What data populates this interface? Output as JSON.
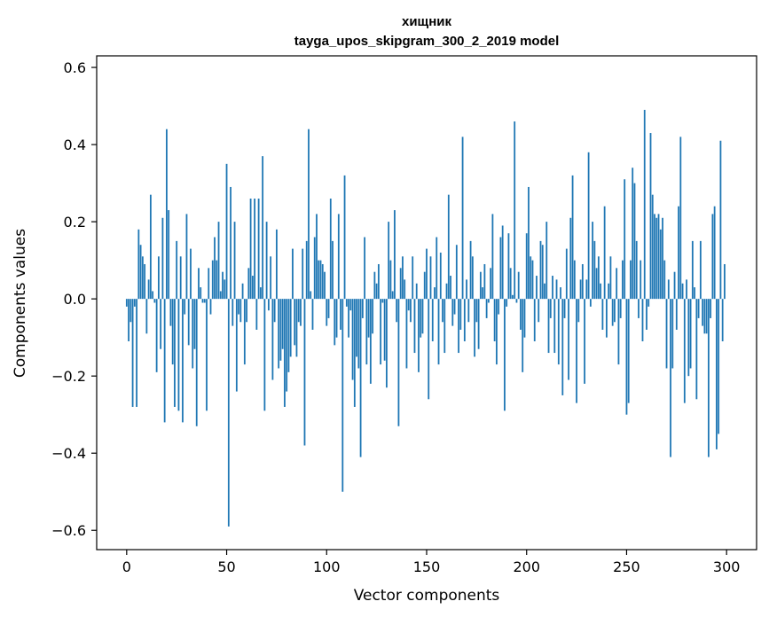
{
  "chart_data": {
    "type": "bar",
    "title_line1": "хищник",
    "title_line2": "tayga_upos_skipgram_300_2_2019 model",
    "xlabel": "Vector components",
    "ylabel": "Components values",
    "xlim": [
      -15,
      315
    ],
    "ylim": [
      -0.65,
      0.63
    ],
    "xticks": [
      0,
      50,
      100,
      150,
      200,
      250,
      300
    ],
    "xtick_labels": [
      "0",
      "50",
      "100",
      "150",
      "200",
      "250",
      "300"
    ],
    "yticks": [
      -0.6,
      -0.4,
      -0.2,
      0.0,
      0.2,
      0.4,
      0.6
    ],
    "ytick_labels": [
      "−0.6",
      "−0.4",
      "−0.2",
      "0.0",
      "0.2",
      "0.4",
      "0.6"
    ],
    "bar_color": "#1f77b4",
    "values": [
      -0.02,
      -0.11,
      -0.06,
      -0.28,
      -0.02,
      -0.28,
      0.18,
      0.14,
      0.11,
      0.09,
      -0.09,
      0.05,
      0.27,
      0.02,
      -0.01,
      -0.19,
      0.11,
      -0.13,
      0.21,
      -0.32,
      0.44,
      0.23,
      -0.07,
      -0.17,
      -0.28,
      0.15,
      -0.29,
      0.11,
      -0.32,
      -0.04,
      0.22,
      -0.12,
      0.13,
      -0.18,
      -0.13,
      -0.33,
      0.08,
      0.03,
      -0.01,
      -0.01,
      -0.29,
      0.08,
      -0.04,
      0.1,
      0.16,
      0.1,
      0.2,
      0.02,
      0.07,
      0.05,
      0.35,
      -0.59,
      0.29,
      -0.07,
      0.2,
      -0.24,
      -0.04,
      -0.06,
      0.04,
      -0.17,
      -0.06,
      0.08,
      0.26,
      0.06,
      0.26,
      -0.08,
      0.26,
      0.03,
      0.37,
      -0.29,
      0.2,
      -0.03,
      0.11,
      -0.21,
      -0.06,
      0.18,
      -0.18,
      -0.16,
      -0.13,
      -0.28,
      -0.24,
      -0.19,
      -0.15,
      0.13,
      -0.12,
      -0.15,
      -0.06,
      -0.07,
      0.13,
      -0.38,
      0.15,
      0.44,
      0.02,
      -0.08,
      0.16,
      0.22,
      0.1,
      0.1,
      0.09,
      0.07,
      -0.07,
      -0.05,
      0.26,
      0.15,
      -0.12,
      -0.1,
      0.22,
      -0.08,
      -0.5,
      0.32,
      -0.02,
      -0.1,
      -0.03,
      -0.21,
      -0.28,
      -0.15,
      -0.18,
      -0.41,
      -0.05,
      0.16,
      -0.17,
      -0.1,
      -0.22,
      -0.09,
      0.07,
      0.04,
      0.09,
      -0.17,
      -0.01,
      -0.16,
      -0.23,
      0.2,
      0.1,
      0.02,
      0.23,
      -0.06,
      -0.33,
      0.08,
      0.11,
      0.05,
      -0.18,
      -0.03,
      -0.06,
      0.11,
      -0.14,
      0.04,
      -0.19,
      -0.1,
      -0.09,
      0.07,
      0.13,
      -0.26,
      0.11,
      -0.11,
      0.03,
      0.16,
      -0.17,
      0.12,
      -0.06,
      -0.14,
      0.04,
      0.27,
      0.06,
      -0.07,
      -0.04,
      0.14,
      -0.14,
      -0.08,
      0.42,
      -0.11,
      0.05,
      -0.06,
      0.15,
      0.11,
      -0.15,
      -0.06,
      -0.13,
      0.07,
      0.03,
      0.09,
      -0.05,
      -0.01,
      0.08,
      0.22,
      -0.11,
      -0.17,
      -0.04,
      0.16,
      0.19,
      -0.29,
      -0.02,
      0.17,
      0.08,
      0.01,
      0.46,
      -0.01,
      0.07,
      -0.08,
      -0.19,
      -0.1,
      0.17,
      0.29,
      0.11,
      0.1,
      -0.11,
      0.06,
      -0.06,
      0.15,
      0.14,
      0.04,
      0.2,
      -0.14,
      -0.05,
      0.06,
      -0.14,
      0.05,
      -0.17,
      0.03,
      -0.25,
      -0.05,
      0.13,
      -0.21,
      0.21,
      0.32,
      0.1,
      -0.27,
      -0.06,
      0.05,
      0.09,
      -0.22,
      0.05,
      0.38,
      -0.02,
      0.2,
      0.15,
      0.08,
      0.11,
      0.04,
      -0.08,
      0.24,
      -0.1,
      0.04,
      0.11,
      -0.07,
      -0.06,
      0.08,
      -0.17,
      -0.05,
      0.1,
      0.31,
      -0.3,
      -0.27,
      0.1,
      0.34,
      0.3,
      0.15,
      -0.05,
      0.1,
      -0.11,
      0.49,
      -0.08,
      -0.02,
      0.43,
      0.27,
      0.22,
      0.21,
      0.22,
      0.18,
      0.21,
      0.1,
      -0.18,
      0.05,
      -0.41,
      -0.18,
      0.07,
      -0.08,
      0.24,
      0.42,
      0.04,
      -0.27,
      0.05,
      -0.2,
      -0.18,
      0.15,
      0.03,
      -0.26,
      -0.05,
      0.15,
      -0.07,
      -0.09,
      -0.09,
      -0.41,
      -0.05,
      0.22,
      0.24,
      -0.39,
      -0.35,
      0.41,
      -0.11,
      0.09
    ]
  }
}
